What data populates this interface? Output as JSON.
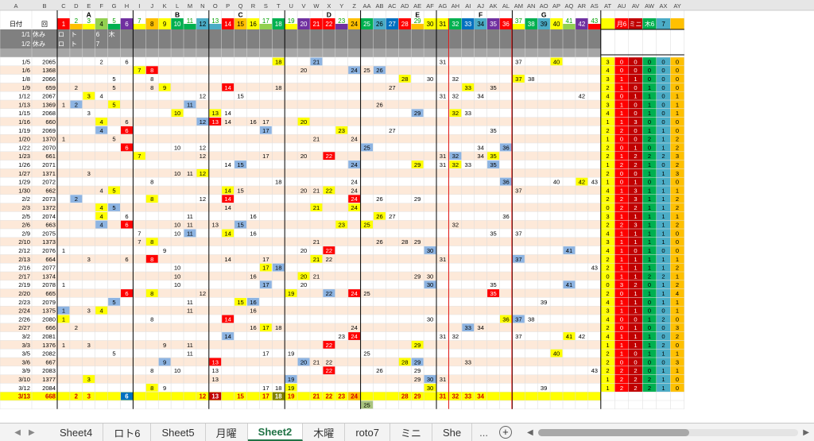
{
  "columns": [
    "A",
    "B",
    "C",
    "D",
    "E",
    "F",
    "G",
    "H",
    "I",
    "J",
    "K",
    "L",
    "M",
    "N",
    "O",
    "P",
    "Q",
    "R",
    "S",
    "T",
    "U",
    "V",
    "W",
    "X",
    "Y",
    "Z",
    "AA",
    "AB",
    "AC",
    "AD",
    "AE",
    "AF",
    "AG",
    "AH",
    "AI",
    "AJ",
    "AK",
    "AL",
    "AM",
    "AN",
    "AO",
    "AP",
    "AQ",
    "AR",
    "AS",
    "AT",
    "AU",
    "AV",
    "AW",
    "AX",
    "AY"
  ],
  "groups": [
    {
      "label": "A",
      "col": "E"
    },
    {
      "label": "B",
      "col": "L"
    },
    {
      "label": "C",
      "col": "Q"
    },
    {
      "label": "D",
      "col": "X"
    },
    {
      "label": "E",
      "col": "AE"
    },
    {
      "label": "F",
      "col": "AJ"
    },
    {
      "label": "G",
      "col": "AO"
    }
  ],
  "header_row": {
    "A": "日付",
    "B": "回",
    "C": "1",
    "D": "2",
    "E": "3",
    "F": "4",
    "G": "5",
    "H": "6",
    "I": "7",
    "J": "8",
    "K": "9",
    "L": "10",
    "M": "11",
    "N": "12",
    "O": "13",
    "P": "14",
    "Q": "15",
    "R": "16",
    "S": "17",
    "T": "18",
    "U": "19",
    "V": "20",
    "W": "21",
    "X": "22",
    "Y": "23",
    "Z": "24",
    "AA": "25",
    "AB": "26",
    "AC": "27",
    "AD": "28",
    "AE": "29",
    "AF": "30",
    "AG": "31",
    "AH": "32",
    "AI": "33",
    "AJ": "34",
    "AK": "35",
    "AL": "36",
    "AM": "37",
    "AN": "38",
    "AO": "39",
    "AP": "40",
    "AQ": "41",
    "AR": "42",
    "AS": "43",
    "AU": "月6",
    "AV": "ミニ",
    "AW": "木6",
    "AX": "7"
  },
  "holiday_rows": [
    {
      "A": "1/1",
      "B": "休み",
      "C": "ロ",
      "D": "ト",
      "F": "6",
      "G": "木"
    },
    {
      "A": "1/2",
      "B": "休み",
      "C": "ロ",
      "D": "ト",
      "F": "7"
    }
  ],
  "rows": [
    {
      "A": "1/5",
      "B": "2065",
      "F": "2",
      "H": "6",
      "T": "18",
      "W": "21",
      "AG": "31",
      "AM": "37",
      "AP": "40",
      "AT": "3",
      "AU": "0",
      "AV": "0",
      "AW": "0",
      "AX": "0",
      "AY": "0"
    },
    {
      "A": "1/6",
      "B": "1368",
      "I": "7",
      "J": "8",
      "V": "20",
      "Z": "24",
      "AA": "25",
      "AB": "26",
      "AT": "4",
      "AU": "0",
      "AV": "0",
      "AW": "0",
      "AX": "0",
      "AY": "0"
    },
    {
      "A": "1/8",
      "B": "2066",
      "G": "5",
      "J": "8",
      "AD": "28",
      "AF": "30",
      "AH": "32",
      "AM": "37",
      "AN": "38",
      "AT": "3",
      "AU": "1",
      "AV": "1",
      "AW": "0",
      "AX": "0",
      "AY": "0"
    },
    {
      "A": "1/9",
      "B": "659",
      "D": "2",
      "G": "5",
      "J": "8",
      "K": "9",
      "P": "14",
      "T": "18",
      "AC": "27",
      "AI": "33",
      "AK": "35",
      "AT": "2",
      "AU": "1",
      "AV": "0",
      "AW": "1",
      "AX": "0",
      "AY": "0"
    },
    {
      "A": "1/12",
      "B": "2067",
      "E": "3",
      "F": "4",
      "N": "12",
      "Q": "15",
      "AG": "31",
      "AH": "32",
      "AJ": "34",
      "AR": "42",
      "AT": "4",
      "AU": "0",
      "AV": "1",
      "AW": "1",
      "AX": "0",
      "AY": "1"
    },
    {
      "A": "1/13",
      "B": "1369",
      "C": "1",
      "D": "2",
      "G": "5",
      "M": "11",
      "AB": "26",
      "AT": "3",
      "AU": "1",
      "AV": "0",
      "AW": "1",
      "AX": "0",
      "AY": "1"
    },
    {
      "A": "1/15",
      "B": "2068",
      "E": "3",
      "L": "10",
      "O": "13",
      "P": "14",
      "AE": "29",
      "AH": "32",
      "AI": "33",
      "AT": "4",
      "AU": "1",
      "AV": "0",
      "AW": "1",
      "AX": "0",
      "AY": "1"
    },
    {
      "A": "1/16",
      "B": "660",
      "F": "4",
      "H": "6",
      "N": "12",
      "O": "13",
      "P": "14",
      "R": "16",
      "S": "17",
      "V": "20",
      "AT": "1",
      "AU": "1",
      "AV": "3",
      "AW": "0",
      "AX": "0",
      "AY": "0"
    },
    {
      "A": "1/19",
      "B": "2069",
      "F": "4",
      "H": "6",
      "S": "17",
      "Y": "23",
      "AC": "27",
      "AK": "35",
      "AT": "2",
      "AU": "2",
      "AV": "0",
      "AW": "1",
      "AX": "1",
      "AY": "0"
    },
    {
      "A": "1/20",
      "B": "1370",
      "C": "1",
      "G": "5",
      "W": "21",
      "Z": "24",
      "AT": "1",
      "AU": "0",
      "AV": "0",
      "AW": "2",
      "AX": "1",
      "AY": "2"
    },
    {
      "A": "1/22",
      "B": "2070",
      "H": "6",
      "L": "10",
      "N": "12",
      "AA": "25",
      "AJ": "34",
      "AL": "36",
      "AT": "2",
      "AU": "0",
      "AV": "1",
      "AW": "0",
      "AX": "1",
      "AY": "2"
    },
    {
      "A": "1/23",
      "B": "661",
      "I": "7",
      "N": "12",
      "S": "17",
      "V": "20",
      "X": "22",
      "AG": "31",
      "AH": "32",
      "AJ": "34",
      "AK": "35",
      "AT": "2",
      "AU": "1",
      "AV": "2",
      "AW": "2",
      "AX": "2",
      "AY": "3"
    },
    {
      "A": "1/26",
      "B": "2071",
      "P": "14",
      "Q": "15",
      "Z": "24",
      "AE": "29",
      "AG": "31",
      "AH": "32",
      "AI": "33",
      "AK": "35",
      "AT": "1",
      "AU": "2",
      "AV": "2",
      "AW": "1",
      "AX": "0",
      "AY": "2"
    },
    {
      "A": "1/27",
      "B": "1371",
      "E": "3",
      "L": "10",
      "M": "11",
      "N": "12",
      "AT": "2",
      "AU": "0",
      "AV": "0",
      "AW": "1",
      "AX": "1",
      "AY": "3"
    },
    {
      "A": "1/29",
      "B": "2072",
      "J": "8",
      "T": "18",
      "Z": "24",
      "AL": "36",
      "AP": "40",
      "AR": "42",
      "AS": "43",
      "AT": "1",
      "AU": "0",
      "AV": "1",
      "AW": "0",
      "AX": "1",
      "AY": "0"
    },
    {
      "A": "1/30",
      "B": "662",
      "F": "4",
      "G": "5",
      "P": "14",
      "Q": "15",
      "V": "20",
      "W": "21",
      "X": "22",
      "Z": "24",
      "AM": "37",
      "AT": "4",
      "AU": "1",
      "AV": "3",
      "AW": "1",
      "AX": "1",
      "AY": "1"
    },
    {
      "A": "2/2",
      "B": "2073",
      "D": "2",
      "J": "8",
      "N": "12",
      "P": "14",
      "Z": "24",
      "AB": "26",
      "AE": "29",
      "AT": "2",
      "AU": "2",
      "AV": "3",
      "AW": "1",
      "AX": "1",
      "AY": "2"
    },
    {
      "A": "2/3",
      "B": "1372",
      "F": "4",
      "G": "5",
      "P": "14",
      "W": "21",
      "Z": "24",
      "AT": "0",
      "AU": "2",
      "AV": "2",
      "AW": "1",
      "AX": "1",
      "AY": "2"
    },
    {
      "A": "2/5",
      "B": "2074",
      "F": "4",
      "H": "6",
      "M": "11",
      "R": "16",
      "AB": "26",
      "AC": "27",
      "AL": "36",
      "AT": "3",
      "AU": "1",
      "AV": "1",
      "AW": "1",
      "AX": "1",
      "AY": "1"
    },
    {
      "A": "2/6",
      "B": "663",
      "F": "4",
      "H": "6",
      "L": "10",
      "M": "11",
      "O": "13",
      "Q": "15",
      "Y": "23",
      "AA": "25",
      "AH": "32",
      "AT": "2",
      "AU": "2",
      "AV": "3",
      "AW": "1",
      "AX": "1",
      "AY": "2"
    },
    {
      "A": "2/9",
      "B": "2075",
      "I": "7",
      "L": "10",
      "M": "11",
      "P": "14",
      "R": "16",
      "AK": "35",
      "AM": "37",
      "AT": "4",
      "AU": "1",
      "AV": "1",
      "AW": "1",
      "AX": "1",
      "AY": "0"
    },
    {
      "A": "2/10",
      "B": "1373",
      "I": "7",
      "J": "8",
      "W": "21",
      "AB": "26",
      "AD": "28",
      "AE": "29",
      "AT": "3",
      "AU": "1",
      "AV": "1",
      "AW": "1",
      "AX": "1",
      "AY": "0"
    },
    {
      "A": "2/12",
      "B": "2076",
      "C": "1",
      "K": "9",
      "V": "20",
      "X": "22",
      "AF": "30",
      "AQ": "41",
      "AT": "4",
      "AU": "1",
      "AV": "0",
      "AW": "1",
      "AX": "0",
      "AY": "0"
    },
    {
      "A": "2/13",
      "B": "664",
      "E": "3",
      "H": "6",
      "J": "8",
      "P": "14",
      "S": "17",
      "W": "21",
      "X": "22",
      "AG": "31",
      "AM": "37",
      "AT": "2",
      "AU": "1",
      "AV": "1",
      "AW": "1",
      "AX": "1",
      "AY": "1"
    },
    {
      "A": "2/16",
      "B": "2077",
      "L": "10",
      "S": "17",
      "T": "18",
      "AS": "43",
      "AT": "2",
      "AU": "1",
      "AV": "1",
      "AW": "1",
      "AX": "1",
      "AY": "2"
    },
    {
      "A": "2/17",
      "B": "1374",
      "L": "10",
      "R": "16",
      "V": "20",
      "W": "21",
      "AE": "29",
      "AF": "30",
      "AT": "0",
      "AU": "1",
      "AV": "1",
      "AW": "2",
      "AX": "2",
      "AY": "1"
    },
    {
      "A": "2/19",
      "B": "2078",
      "C": "1",
      "L": "10",
      "S": "17",
      "V": "20",
      "AF": "30",
      "AK": "35",
      "AQ": "41",
      "AT": "0",
      "AU": "3",
      "AV": "2",
      "AW": "0",
      "AX": "1",
      "AY": "2"
    },
    {
      "A": "2/20",
      "B": "665",
      "H": "6",
      "J": "8",
      "N": "12",
      "U": "19",
      "X": "22",
      "Z": "24",
      "AA": "25",
      "AK": "35",
      "AT": "2",
      "AU": "0",
      "AV": "1",
      "AW": "1",
      "AX": "1",
      "AY": "4"
    },
    {
      "A": "2/23",
      "B": "2079",
      "G": "5",
      "M": "11",
      "Q": "15",
      "R": "16",
      "AO": "39",
      "AT": "4",
      "AU": "1",
      "AV": "1",
      "AW": "0",
      "AX": "1",
      "AY": "1"
    },
    {
      "A": "2/24",
      "B": "1375",
      "C": "1",
      "E": "3",
      "F": "4",
      "M": "11",
      "R": "16",
      "AT": "3",
      "AU": "1",
      "AV": "1",
      "AW": "0",
      "AX": "0",
      "AY": "1"
    },
    {
      "A": "2/26",
      "B": "2080",
      "C": "1",
      "J": "8",
      "P": "14",
      "AF": "30",
      "AL": "36",
      "AM": "37",
      "AN": "38",
      "AT": "4",
      "AU": "0",
      "AV": "0",
      "AW": "1",
      "AX": "2",
      "AY": "0"
    },
    {
      "A": "2/27",
      "B": "666",
      "D": "2",
      "R": "16",
      "S": "17",
      "T": "18",
      "Z": "24",
      "AI": "33",
      "AJ": "34",
      "AT": "2",
      "AU": "0",
      "AV": "1",
      "AW": "0",
      "AX": "0",
      "AY": "3"
    },
    {
      "A": "3/2",
      "B": "2081",
      "P": "14",
      "Y": "23",
      "Z": "24",
      "AG": "31",
      "AH": "32",
      "AM": "37",
      "AQ": "41",
      "AR": "42",
      "AT": "4",
      "AU": "1",
      "AV": "1",
      "AW": "1",
      "AX": "0",
      "AY": "2"
    },
    {
      "A": "3/3",
      "B": "1376",
      "C": "1",
      "E": "3",
      "K": "9",
      "M": "11",
      "X": "22",
      "AE": "29",
      "AT": "1",
      "AU": "1",
      "AV": "1",
      "AW": "1",
      "AX": "2",
      "AY": "0"
    },
    {
      "A": "3/5",
      "B": "2082",
      "G": "5",
      "M": "11",
      "S": "17",
      "U": "19",
      "AA": "25",
      "AP": "40",
      "AT": "2",
      "AU": "1",
      "AV": "0",
      "AW": "1",
      "AX": "1",
      "AY": "1"
    },
    {
      "A": "3/6",
      "B": "667",
      "K": "9",
      "O": "13",
      "V": "20",
      "W": "21",
      "X": "22",
      "AD": "28",
      "AE": "29",
      "AI": "33",
      "AT": "2",
      "AU": "0",
      "AV": "0",
      "AW": "0",
      "AX": "0",
      "AY": "3"
    },
    {
      "A": "3/9",
      "B": "2083",
      "J": "8",
      "L": "10",
      "O": "13",
      "X": "22",
      "AB": "26",
      "AE": "29",
      "AS": "43",
      "AT": "2",
      "AU": "2",
      "AV": "2",
      "AW": "0",
      "AX": "1",
      "AY": "1"
    },
    {
      "A": "3/10",
      "B": "1377",
      "E": "3",
      "O": "13",
      "U": "19",
      "AE": "29",
      "AF": "30",
      "AG": "31",
      "AT": "1",
      "AU": "2",
      "AV": "2",
      "AW": "2",
      "AX": "1",
      "AY": "0"
    },
    {
      "A": "3/12",
      "B": "2084",
      "J": "8",
      "K": "9",
      "S": "17",
      "T": "18",
      "U": "19",
      "AF": "30",
      "AO": "39",
      "AT": "1",
      "AU": "2",
      "AV": "2",
      "AW": "2",
      "AX": "1",
      "AY": "0"
    }
  ],
  "total_row": {
    "A": "3/13",
    "B": "668",
    "D": "2",
    "E": "3",
    "H": "6",
    "N": "12",
    "O": "13",
    "Q": "15",
    "S": "17",
    "T": "18",
    "U": "19",
    "W": "21",
    "X": "22",
    "Y": "23",
    "Z": "24",
    "AD": "28",
    "AE": "29",
    "AG": "31",
    "AH": "32",
    "AI": "33",
    "AJ": "34"
  },
  "extra_row": {
    "AA": "25"
  },
  "tabs": [
    "Sheet4",
    "ロト6",
    "Sheet5",
    "月曜",
    "Sheet2",
    "木曜",
    "roto7",
    "ミニ",
    "She"
  ],
  "active_tab": "Sheet2",
  "colors": {
    "yellow": "#ffff00",
    "red": "#ff0000",
    "blue": "#8db4e2",
    "pink": "#fde9d9",
    "gray": "#808080",
    "purple": "#7030a0",
    "orange": "#ffc000",
    "green": "#00b050",
    "teal": "#4bacc6",
    "dkred": "#c00000"
  }
}
